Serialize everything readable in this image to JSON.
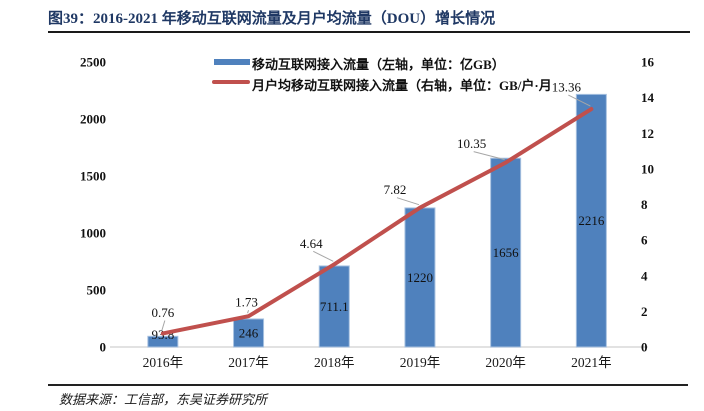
{
  "header": {
    "title": "图39：2016-2021 年移动互联网流量及月户均流量（DOU）增长情况"
  },
  "footer": {
    "source": "数据来源：工信部，东吴证券研究所"
  },
  "colors": {
    "title_navy": "#1F3864",
    "bar_blue": "#4F81BD",
    "line_red": "#C0504D",
    "axis_gray": "#D9D9D9"
  },
  "chart_data": {
    "type": "bar",
    "subtype": "combo-bar-line-dual-axis",
    "categories": [
      "2016年",
      "2017年",
      "2018年",
      "2019年",
      "2020年",
      "2021年"
    ],
    "series": [
      {
        "name": "移动互联网接入流量（左轴，单位：亿GB）",
        "type": "bar",
        "axis": "left",
        "color": "#4F81BD",
        "values": [
          93.8,
          246,
          711.1,
          1220,
          1656,
          2216
        ],
        "labels": [
          "93.8",
          "246",
          "711.1",
          "1220",
          "1656",
          "2216"
        ]
      },
      {
        "name": "月户均移动互联网接入流量（右轴，单位：GB/户·月",
        "type": "line",
        "axis": "right",
        "color": "#C0504D",
        "values": [
          0.76,
          1.73,
          4.64,
          7.82,
          10.35,
          13.36
        ],
        "labels": [
          "0.76",
          "1.73",
          "4.64",
          "7.82",
          "10.35",
          "13.36"
        ]
      }
    ],
    "left_axis": {
      "ticks": [
        0,
        500,
        1000,
        1500,
        2000,
        2500
      ],
      "range": [
        0,
        2500
      ]
    },
    "right_axis": {
      "ticks": [
        0,
        2,
        4,
        6,
        8,
        10,
        12,
        14,
        16
      ],
      "range": [
        0,
        16
      ]
    },
    "legend_position": "top",
    "grid": false,
    "data_label_style": "bar labels centered inside bars; line labels above-left of points with gray leader lines"
  }
}
